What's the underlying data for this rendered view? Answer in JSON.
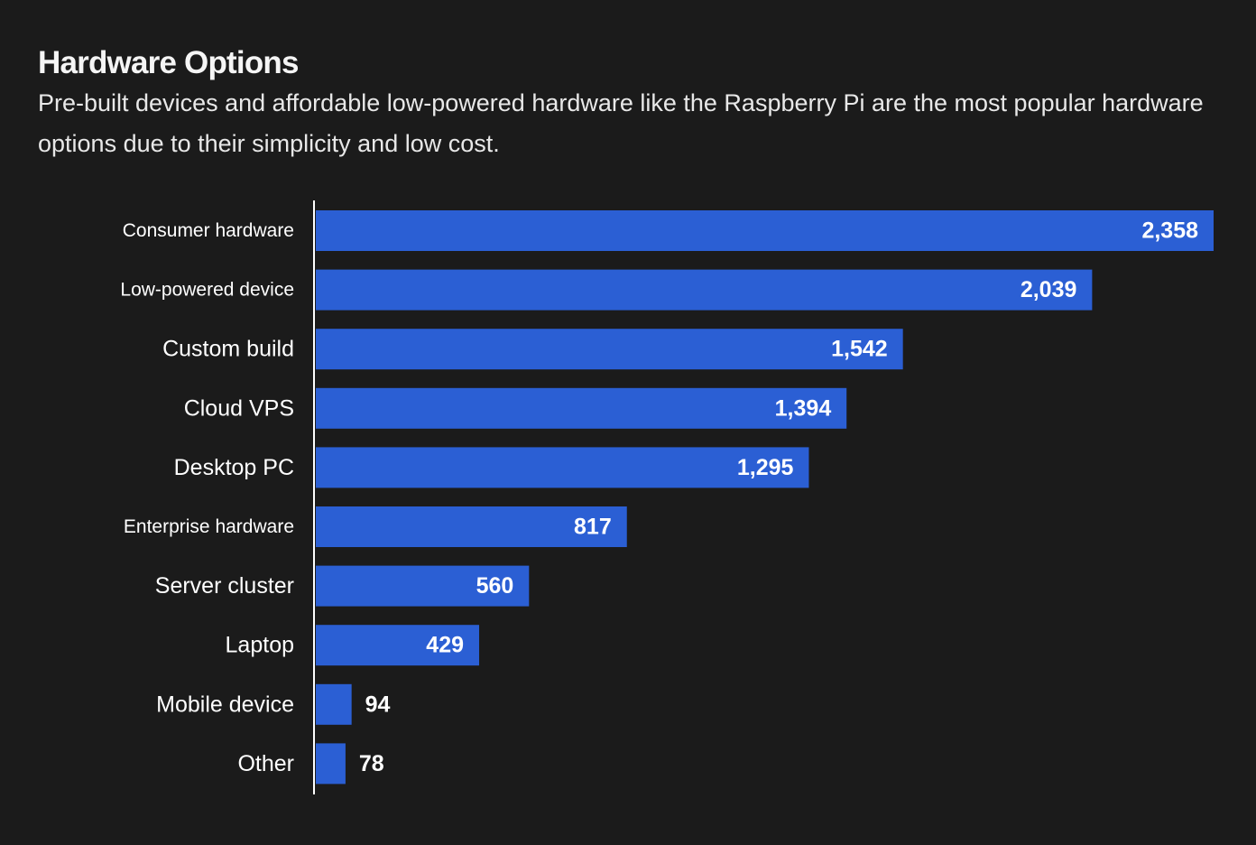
{
  "header": {
    "title": "Hardware Options",
    "subtitle": "Pre-built devices and affordable low-powered hardware like the Raspberry Pi are the most popular hardware options due to their simplicity and low cost."
  },
  "colors": {
    "background": "#1b1b1b",
    "bar": "#2b5fd4",
    "axis": "#ffffff",
    "text": "#ffffff"
  },
  "chart_data": {
    "type": "bar",
    "orientation": "horizontal",
    "title": "Hardware Options",
    "xlabel": "",
    "ylabel": "",
    "xlim": [
      0,
      2358
    ],
    "grid": false,
    "categories": [
      "Consumer hardware",
      "Low-powered device",
      "Custom build",
      "Cloud VPS",
      "Desktop PC",
      "Enterprise hardware",
      "Server cluster",
      "Laptop",
      "Mobile device",
      "Other"
    ],
    "values": [
      2358,
      2039,
      1542,
      1394,
      1295,
      817,
      560,
      429,
      94,
      78
    ],
    "value_labels": [
      "2,358",
      "2,039",
      "1,542",
      "1,394",
      "1,295",
      "817",
      "560",
      "429",
      "94",
      "78"
    ]
  }
}
